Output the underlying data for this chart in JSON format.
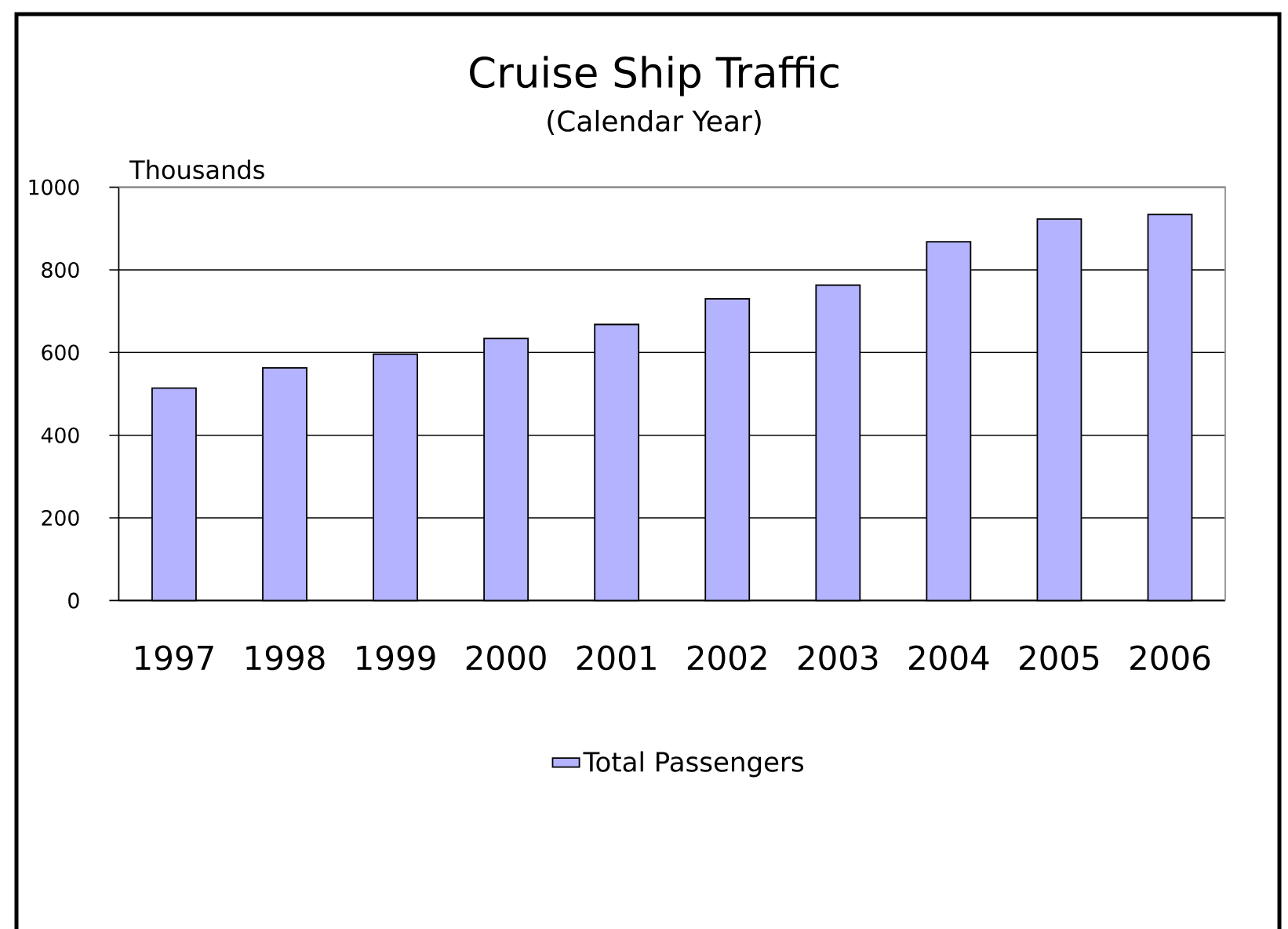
{
  "chart_data": {
    "type": "bar",
    "title": "Cruise Ship Traffic",
    "subtitle": "(Calendar Year)",
    "ylabel": "Thousands",
    "categories": [
      "1997",
      "1998",
      "1999",
      "2000",
      "2001",
      "2002",
      "2003",
      "2004",
      "2005",
      "2006"
    ],
    "series": [
      {
        "name": "Total Passengers",
        "color": "#b3b3ff",
        "values": [
          514,
          563,
          596,
          634,
          668,
          730,
          763,
          868,
          923,
          934
        ]
      }
    ],
    "ylim": [
      0,
      1000
    ],
    "yticks": [
      0,
      200,
      400,
      600,
      800,
      1000
    ],
    "grid": "y",
    "legend": "bottom"
  }
}
